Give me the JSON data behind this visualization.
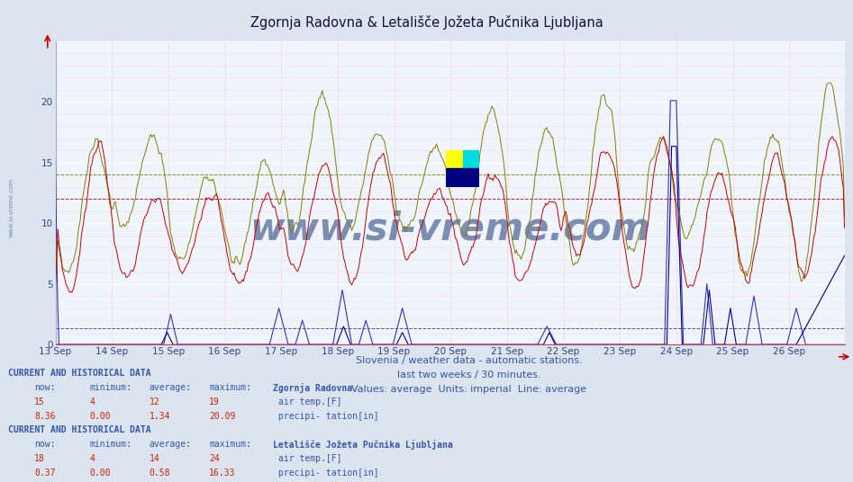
{
  "title": "Zgornja Radovna & Letališče Jožeta Pučnika Ljubljana",
  "subtitle1": "Slovenia / weather data - automatic stations.",
  "subtitle2": "last two weeks / 30 minutes.",
  "subtitle3": "Values: average  Units: imperial  Line: average",
  "bg_color": "#dce4f0",
  "plot_bg_color": "#f0f4fc",
  "xmin": 0,
  "xmax": 671,
  "ymin": 0,
  "ymax": 25,
  "date_labels": [
    "13 Sep",
    "14 Sep",
    "15 Sep",
    "16 Sep",
    "17 Sep",
    "18 Sep",
    "19 Sep",
    "20 Sep",
    "21 Sep",
    "22 Sep",
    "23 Sep",
    "24 Sep",
    "25 Sep",
    "26 Sep"
  ],
  "avg_red": 12,
  "avg_olive": 14,
  "avg_blue": 1.34,
  "station1_name": "Zgornja Radovna",
  "station2_name": "Letališče Jožeta Pučnika Ljubljana",
  "station1_now": 15,
  "station1_min": 4,
  "station1_avg": 12,
  "station1_max": 19,
  "station1_precip_now": 8.36,
  "station1_precip_min": 0.0,
  "station1_precip_avg": 1.34,
  "station1_precip_max": 20.09,
  "station2_now": 18,
  "station2_min": 4,
  "station2_avg": 14,
  "station2_max": 24,
  "station2_precip_now": 0.37,
  "station2_precip_min": 0.0,
  "station2_precip_avg": 0.58,
  "station2_precip_max": 16.33,
  "color_red": "#cc0000",
  "color_olive": "#808000",
  "color_blue": "#3333bb",
  "color_darkblue": "#000099",
  "color_grid_h": "#ff9999",
  "color_grid_v": "#ddaaaa",
  "watermark": "www.si-vreme.com",
  "watermark_color": "#1a3a7a",
  "logo_yellow": "#ffff00",
  "logo_cyan": "#00dddd",
  "logo_blue_dark": "#000080"
}
